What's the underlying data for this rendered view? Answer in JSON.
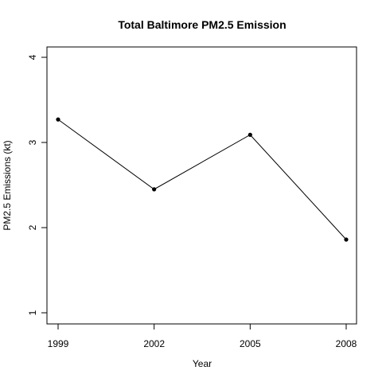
{
  "chart_data": {
    "type": "line",
    "title": "Total Baltimore PM2.5 Emission",
    "xlabel": "Year",
    "ylabel": "PM2.5 Emissions (kt)",
    "x": [
      1999,
      2002,
      2005,
      2008
    ],
    "values": [
      3.27,
      2.45,
      3.09,
      1.86
    ],
    "x_ticks": [
      "1999",
      "2002",
      "2005",
      "2008"
    ],
    "y_ticks": [
      "1",
      "2",
      "3",
      "4"
    ],
    "xlim": [
      1999,
      2008
    ],
    "ylim": [
      1,
      4
    ],
    "grid": false,
    "legend": "none",
    "line_color": "#000000",
    "marker_color": "#000000"
  }
}
